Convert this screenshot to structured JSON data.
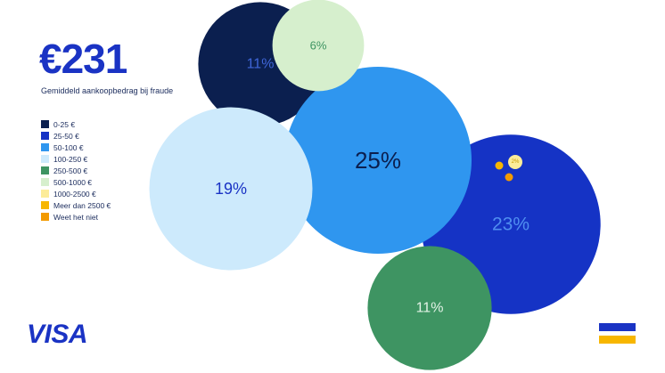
{
  "header": {
    "big_number": "€231",
    "subtitle": "Gemiddeld aankoopbedrag bij fraude"
  },
  "brand": {
    "logo_text": "VISA",
    "logo_color": "#1a33c4"
  },
  "flag_icon": {
    "name": "flag-icon",
    "top_color": "#1a33c4",
    "bottom_color": "#f7b600"
  },
  "chart_data": {
    "type": "bubble",
    "title": "",
    "legend_position": "left",
    "series": [
      {
        "name": "0-25 €",
        "value": 11,
        "label": "11%",
        "color": "#0b1f4f",
        "text_color": "#3f66d8"
      },
      {
        "name": "25-50 €",
        "value": 23,
        "label": "23%",
        "color": "#1533c5",
        "text_color": "#4f8ef0"
      },
      {
        "name": "50-100 €",
        "value": 25,
        "label": "25%",
        "color": "#2f96ef",
        "text_color": "#0b1f4f"
      },
      {
        "name": "100-250 €",
        "value": 19,
        "label": "19%",
        "color": "#cdeafc",
        "text_color": "#1a33c4"
      },
      {
        "name": "250-500 €",
        "value": 11,
        "label": "11%",
        "color": "#3e9462",
        "text_color": "#e3f3e6"
      },
      {
        "name": "500-1000 €",
        "value": 6,
        "label": "6%",
        "color": "#d6efcd",
        "text_color": "#3e9462"
      },
      {
        "name": "1000-2500 €",
        "value": 2,
        "label": "2%",
        "color": "#fcec99",
        "text_color": "#c89b00"
      },
      {
        "name": "Meer dan 2500 €",
        "value": 1,
        "label": "",
        "color": "#f7b600",
        "text_color": "#f7b600"
      },
      {
        "name": "Weet het niet",
        "value": 1,
        "label": "",
        "color": "#f39a00",
        "text_color": "#f39a00"
      }
    ]
  }
}
